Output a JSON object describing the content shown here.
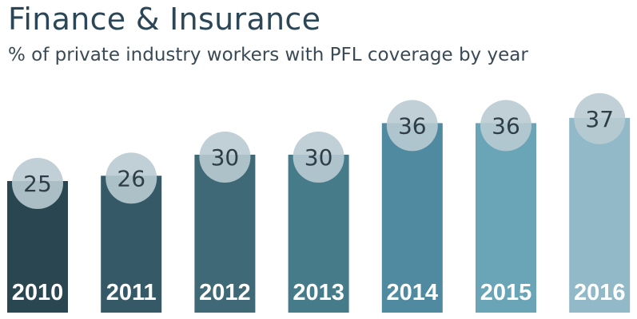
{
  "title": "Finance & Insurance",
  "subtitle": "% of private industry workers with PFL coverage by year",
  "chart_data": {
    "type": "bar",
    "categories": [
      "2010",
      "2011",
      "2012",
      "2013",
      "2014",
      "2015",
      "2016"
    ],
    "values": [
      25,
      26,
      30,
      30,
      36,
      36,
      37
    ],
    "colors": [
      "#294651",
      "#355967",
      "#3f6977",
      "#467b8a",
      "#4f8aa0",
      "#6aa5b7",
      "#91b9c7"
    ],
    "label_bubble_color": "#b9cbd2",
    "ylim": [
      0,
      40
    ],
    "grid": false,
    "legend": "none"
  }
}
